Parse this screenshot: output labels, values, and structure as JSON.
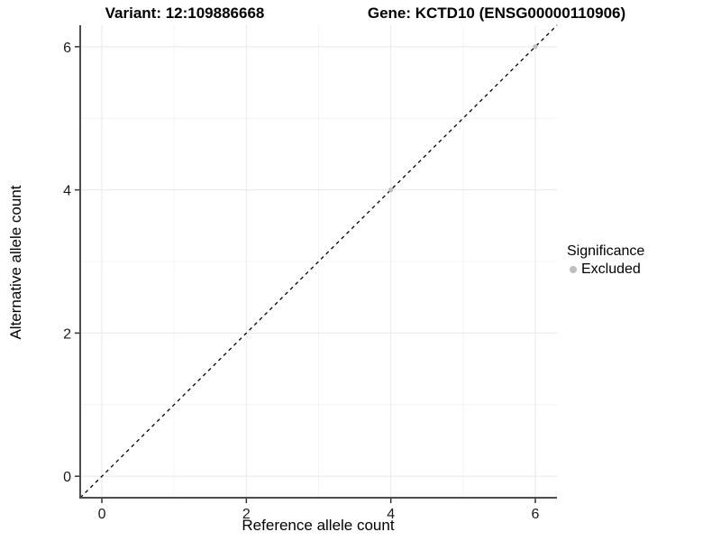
{
  "chart_data": {
    "type": "scatter",
    "title_left": "Variant: 12:109886668",
    "title_right": "Gene: KCTD10 (ENSG00000110906)",
    "xlabel": "Reference allele count",
    "ylabel": "Alternative allele count",
    "xlim": [
      -0.3,
      6.3
    ],
    "ylim": [
      -0.3,
      6.3
    ],
    "x_major_ticks": [
      0,
      2,
      4,
      6
    ],
    "y_major_ticks": [
      0,
      2,
      4,
      6
    ],
    "x_minor_ticks": [
      1,
      3,
      5
    ],
    "y_minor_ticks": [
      1,
      3,
      5
    ],
    "grid": true,
    "identity_line": {
      "style": "dashed",
      "color": "#000000",
      "from": [
        -0.3,
        -0.3
      ],
      "to": [
        6.3,
        6.3
      ]
    },
    "series": [
      {
        "name": "Excluded",
        "color": "#bebebe",
        "points": [
          {
            "x": 4,
            "y": 4
          },
          {
            "x": 6,
            "y": 6
          }
        ]
      }
    ],
    "legend": {
      "title": "Significance",
      "position": "right",
      "items": [
        {
          "label": "Excluded",
          "color": "#bebebe"
        }
      ]
    },
    "colors": {
      "axis_line": "#4d4d4d",
      "tick_mark": "#333333",
      "tick_label": "#1a1a1a",
      "grid_major": "#e8e8e8",
      "grid_minor": "#f4f4f4",
      "background": "#ffffff"
    }
  }
}
